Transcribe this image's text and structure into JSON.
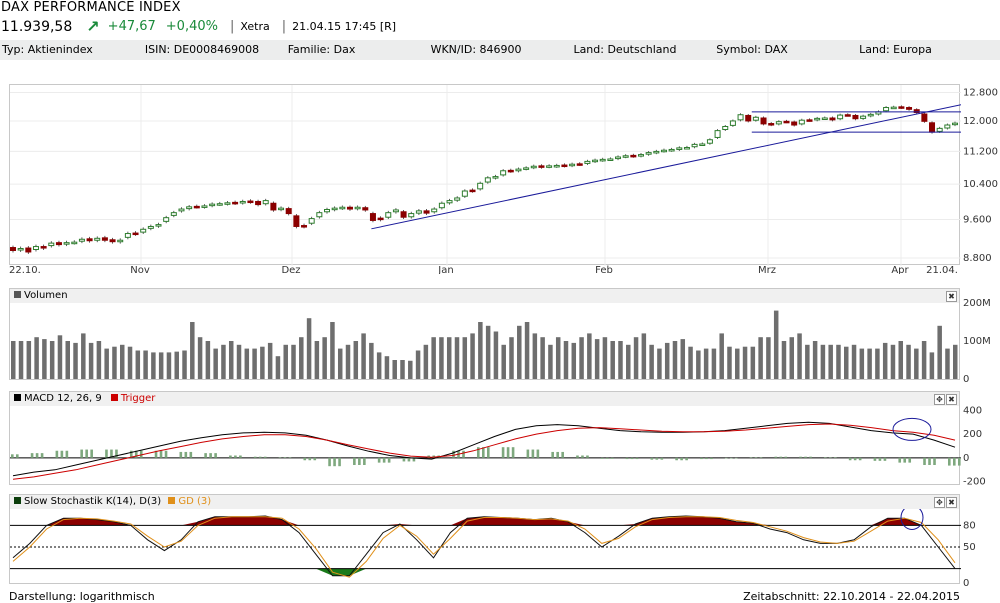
{
  "title": "DAX PERFORMANCE INDEX",
  "quote": {
    "price": "11.939,58",
    "change": "+47,67",
    "change_pct": "+0,40%",
    "exchange": "Xetra",
    "datetime": "21.04.15 17:45 [R]",
    "trend_icon": "arrow-up-right-icon"
  },
  "info": [
    {
      "label": "Typ: Aktienindex"
    },
    {
      "label": "ISIN: DE0008469008"
    },
    {
      "label": "Familie: Dax"
    },
    {
      "label": "WKN/ID: 846900"
    },
    {
      "label": "Land: Deutschland"
    },
    {
      "label": "Symbol: DAX"
    },
    {
      "label": "Land: Europa"
    }
  ],
  "colors": {
    "up": "#2e7d2e",
    "down": "#8b0000",
    "trend": "#1a1a9a",
    "macd": "#000000",
    "trigger": "#cc0000",
    "stoch_fill": "#8b0000",
    "gd": "#e0901a",
    "volume": "#6e6e6e"
  },
  "footer": {
    "left": "Darstellung: logarithmisch",
    "right": "Zeitabschnitt: 22.10.2014 - 22.04.2015"
  },
  "chart_data": [
    {
      "type": "candlestick",
      "scale": "log",
      "y_ticks": [
        "12.800",
        "12.000",
        "11.200",
        "10.400",
        "9.600",
        "8.800"
      ],
      "y_tick_values": [
        12800,
        12000,
        11200,
        10400,
        9600,
        8800
      ],
      "x_ticks": [
        "22.10.",
        "Nov",
        "Dez",
        "Jan",
        "Feb",
        "Mrz",
        "Apr",
        "21.04."
      ],
      "ylim": [
        8700,
        12900
      ],
      "close": [
        8950,
        8990,
        8920,
        9030,
        9000,
        9100,
        9070,
        9110,
        9120,
        9180,
        9150,
        9200,
        9160,
        9130,
        9160,
        9300,
        9290,
        9390,
        9450,
        9490,
        9640,
        9750,
        9830,
        9880,
        9880,
        9900,
        9940,
        9950,
        9970,
        9960,
        10000,
        9990,
        9930,
        10020,
        9810,
        9850,
        9730,
        9450,
        9450,
        9620,
        9750,
        9820,
        9850,
        9870,
        9830,
        9870,
        9810,
        9580,
        9600,
        9750,
        9810,
        9650,
        9730,
        9790,
        9740,
        9830,
        9960,
        10020,
        10080,
        10240,
        10240,
        10420,
        10550,
        10580,
        10720,
        10710,
        10760,
        10790,
        10830,
        10810,
        10840,
        10850,
        10840,
        10880,
        10880,
        10950,
        10980,
        11000,
        11010,
        11060,
        11090,
        11080,
        11120,
        11170,
        11200,
        11230,
        11250,
        11290,
        11300,
        11380,
        11390,
        11500,
        11740,
        11850,
        12000,
        12170,
        12000,
        12100,
        11920,
        11900,
        11980,
        11980,
        11890,
        12020,
        12020,
        12070,
        12080,
        12030,
        12160,
        12160,
        12060,
        12130,
        12180,
        12250,
        12370,
        12380,
        12370,
        12320,
        12230,
        11990,
        11700,
        11800,
        11890,
        11940
      ],
      "open_offset": [
        -60,
        30,
        -80,
        60,
        -30,
        50,
        -40,
        30,
        10,
        40,
        -40,
        40,
        -50,
        -40,
        30,
        80,
        -20,
        60,
        40,
        30,
        80,
        60,
        40,
        40,
        -10,
        20,
        30,
        10,
        20,
        -20,
        30,
        -20,
        -70,
        70,
        -150,
        30,
        -110,
        -230,
        -20,
        100,
        90,
        50,
        30,
        20,
        -40,
        30,
        -50,
        -150,
        -30,
        100,
        40,
        -120,
        70,
        50,
        -50,
        60,
        100,
        50,
        50,
        120,
        -20,
        130,
        100,
        30,
        100,
        -20,
        40,
        20,
        30,
        -30,
        20,
        20,
        -20,
        30,
        -10,
        50,
        30,
        20,
        10,
        40,
        20,
        -20,
        30,
        40,
        30,
        20,
        20,
        40,
        10,
        60,
        10,
        90,
        180,
        80,
        120,
        140,
        -150,
        80,
        -160,
        -30,
        60,
        -10,
        -80,
        100,
        -10,
        40,
        10,
        -50,
        100,
        -10,
        -90,
        60,
        40,
        60,
        90,
        10,
        -20,
        -50,
        -80,
        -200,
        -250,
        80,
        80,
        40
      ],
      "trend_lines": [
        {
          "x": [
            0.38,
            1.0
          ],
          "y": [
            9400,
            12450
          ]
        },
        {
          "x": [
            0.78,
            1.0
          ],
          "y": [
            12250,
            12250
          ]
        },
        {
          "x": [
            0.78,
            1.0
          ],
          "y": [
            11700,
            11700
          ]
        }
      ]
    },
    {
      "type": "bar",
      "title": "Volumen",
      "y_ticks": [
        "200M",
        "100M",
        "0"
      ],
      "y_tick_values": [
        200,
        100,
        0
      ],
      "ylim": [
        0,
        200
      ],
      "values": [
        100,
        100,
        100,
        110,
        105,
        100,
        115,
        100,
        95,
        120,
        95,
        100,
        80,
        85,
        90,
        85,
        75,
        75,
        70,
        70,
        70,
        72,
        75,
        150,
        110,
        100,
        80,
        90,
        100,
        90,
        80,
        80,
        85,
        95,
        60,
        90,
        90,
        110,
        160,
        100,
        110,
        150,
        80,
        90,
        100,
        120,
        95,
        70,
        60,
        50,
        50,
        48,
        75,
        90,
        110,
        110,
        110,
        110,
        110,
        120,
        150,
        140,
        125,
        90,
        110,
        140,
        150,
        120,
        110,
        90,
        110,
        100,
        95,
        110,
        120,
        105,
        110,
        100,
        100,
        90,
        110,
        120,
        90,
        80,
        95,
        100,
        105,
        85,
        75,
        80,
        80,
        120,
        85,
        80,
        85,
        85,
        110,
        110,
        180,
        100,
        110,
        120,
        90,
        100,
        90,
        90,
        90,
        85,
        90,
        80,
        80,
        80,
        95,
        90,
        100,
        90,
        80,
        100,
        70,
        140,
        80,
        90
      ],
      "unit": "M"
    },
    {
      "type": "line",
      "title": "MACD 12, 26, 9",
      "y_ticks": [
        "400",
        "200",
        "0",
        "-200"
      ],
      "y_tick_values": [
        400,
        200,
        0,
        -200
      ],
      "ylim": [
        -220,
        420
      ],
      "series": [
        {
          "name": "MACD 12, 26, 9",
          "values": [
            -150,
            -120,
            -100,
            -60,
            -20,
            20,
            60,
            100,
            140,
            170,
            195,
            210,
            215,
            210,
            190,
            150,
            100,
            55,
            20,
            0,
            -10,
            40,
            110,
            180,
            240,
            270,
            280,
            270,
            250,
            230,
            220,
            215,
            215,
            220,
            230,
            250,
            270,
            290,
            300,
            290,
            260,
            230,
            210,
            200,
            150,
            90
          ]
        },
        {
          "name": "Trigger",
          "values": [
            -180,
            -160,
            -130,
            -100,
            -60,
            -20,
            20,
            60,
            95,
            130,
            160,
            180,
            195,
            195,
            180,
            150,
            110,
            75,
            40,
            15,
            5,
            20,
            60,
            110,
            160,
            200,
            230,
            250,
            255,
            245,
            235,
            225,
            220,
            220,
            225,
            235,
            250,
            265,
            280,
            285,
            275,
            255,
            230,
            215,
            190,
            150
          ]
        }
      ],
      "histogram": [
        30,
        40,
        60,
        70,
        70,
        60,
        60,
        50,
        40,
        20,
        10,
        5,
        -20,
        -70,
        -60,
        -40,
        -30,
        20,
        60,
        90,
        90,
        70,
        50,
        20,
        0,
        -10,
        -15,
        -20,
        -10,
        -5,
        5,
        10,
        10,
        5,
        -20,
        -25,
        -40,
        -60,
        -65
      ]
    },
    {
      "type": "area",
      "title": "Slow Stochastik K(14), D(3)",
      "y_ticks": [
        "80",
        "50",
        "0"
      ],
      "y_tick_values": [
        80,
        50,
        0
      ],
      "ylim": [
        0,
        100
      ],
      "series": [
        {
          "name": "Slow Stochastik K(14), D(3)",
          "values": [
            35,
            55,
            80,
            90,
            90,
            88,
            85,
            80,
            60,
            45,
            60,
            85,
            92,
            92,
            92,
            93,
            88,
            70,
            40,
            10,
            10,
            40,
            70,
            82,
            60,
            35,
            70,
            90,
            92,
            91,
            90,
            88,
            90,
            85,
            70,
            50,
            65,
            82,
            90,
            92,
            93,
            92,
            90,
            85,
            83,
            75,
            70,
            60,
            55,
            55,
            60,
            78,
            90,
            90,
            80,
            50,
            20
          ]
        },
        {
          "name": "GD (3)",
          "values": [
            30,
            50,
            75,
            88,
            90,
            89,
            86,
            82,
            65,
            50,
            58,
            80,
            90,
            92,
            92,
            92,
            90,
            75,
            48,
            15,
            8,
            30,
            62,
            80,
            65,
            40,
            62,
            86,
            91,
            91,
            90,
            88,
            89,
            86,
            75,
            55,
            62,
            78,
            88,
            91,
            92,
            92,
            91,
            87,
            84,
            78,
            72,
            63,
            57,
            55,
            58,
            72,
            86,
            90,
            84,
            60,
            28
          ]
        }
      ]
    }
  ]
}
